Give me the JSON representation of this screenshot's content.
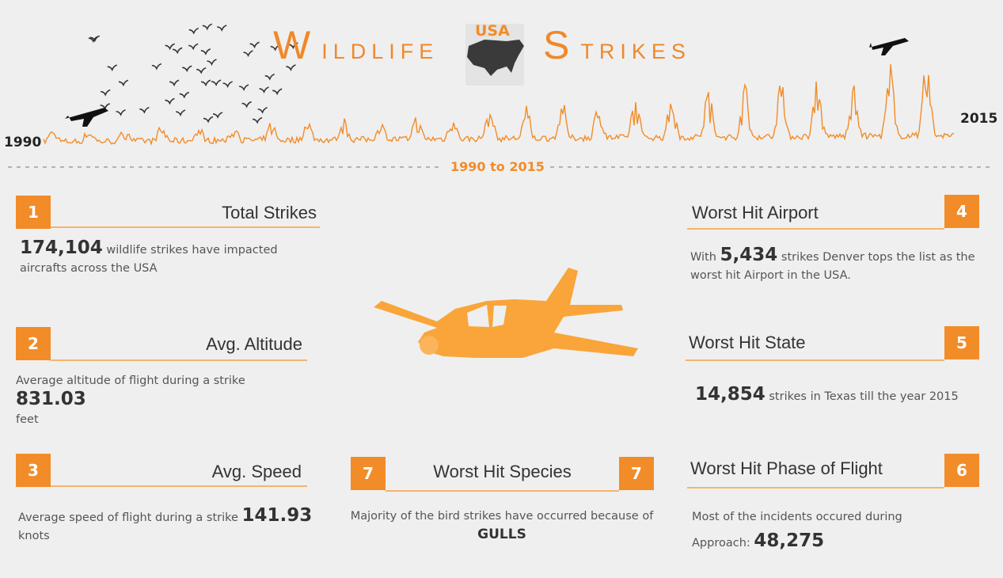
{
  "header": {
    "title_words": [
      "WILDLIFE",
      "STRIKES"
    ],
    "map_label": "USA",
    "start_year": "1990",
    "end_year": "2015",
    "range": "1990 to 2015"
  },
  "cards": [
    {
      "number": "1",
      "title": "Total Strikes",
      "value": "174,104",
      "after": "wildlife strikes have impacted aircrafts across the USA"
    },
    {
      "number": "2",
      "title": "Avg. Altitude",
      "before": "Average altitude of flight during a strike",
      "value": "831.03",
      "after": "feet"
    },
    {
      "number": "3",
      "title": "Avg. Speed",
      "before": "Average speed of flight during a strike",
      "value": "141.93",
      "after": "knots"
    },
    {
      "number": "4",
      "title": "Worst Hit Airport",
      "before": "With",
      "value": "5,434",
      "after": "strikes Denver tops the list as the worst hit Airport in the USA."
    },
    {
      "number": "5",
      "title": "Worst Hit State",
      "value": "14,854",
      "after": "strikes in Texas till the year 2015"
    },
    {
      "number": "6",
      "title": "Worst Hit Phase of Flight",
      "before": "Most of the incidents occured during Approach:",
      "value": "48,275"
    },
    {
      "number": "7",
      "title": "Worst Hit Species",
      "before": "Majority of the bird strikes have occurred because of",
      "value": "GULLS"
    }
  ]
}
